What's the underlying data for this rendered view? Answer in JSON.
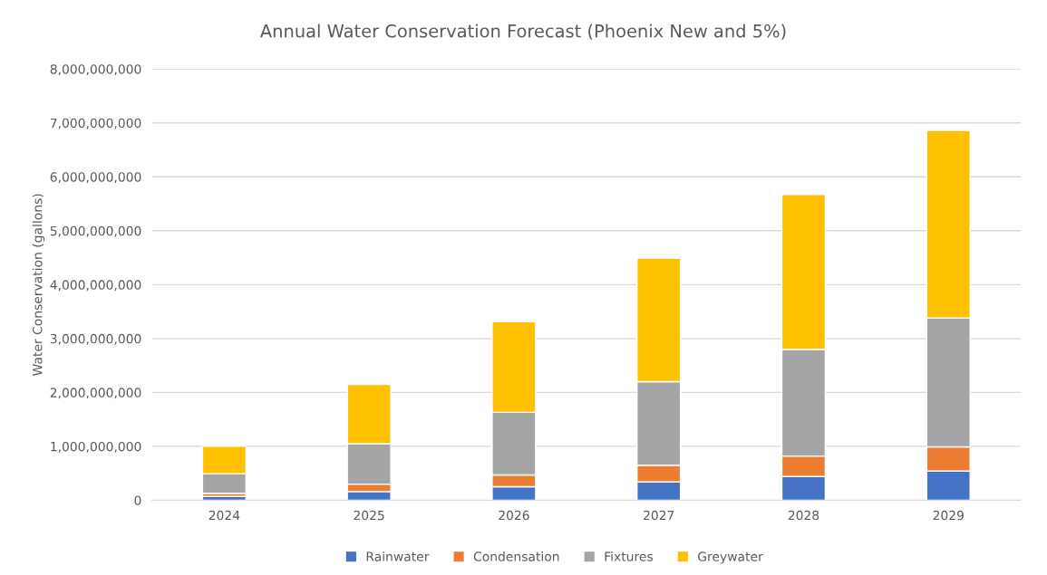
{
  "chart_data": {
    "type": "bar",
    "title": "Annual Water Conservation Forecast (Phoenix New and 5%)",
    "ylabel": "Water Conservation (gallons)",
    "categories": [
      "2024",
      "2025",
      "2026",
      "2027",
      "2028",
      "2029"
    ],
    "stacked": true,
    "series": [
      {
        "name": "Rainwater",
        "color": "#4472c4",
        "values": [
          70000000,
          160000000,
          250000000,
          340000000,
          440000000,
          540000000
        ]
      },
      {
        "name": "Condensation",
        "color": "#ed7d31",
        "values": [
          60000000,
          140000000,
          220000000,
          310000000,
          380000000,
          450000000
        ]
      },
      {
        "name": "Fixtures",
        "color": "#a5a5a5",
        "values": [
          360000000,
          750000000,
          1160000000,
          1550000000,
          1980000000,
          2390000000
        ]
      },
      {
        "name": "Greywater",
        "color": "#ffc000",
        "values": [
          510000000,
          1100000000,
          1680000000,
          2290000000,
          2870000000,
          3480000000
        ]
      }
    ],
    "ylim": [
      0,
      8000000000
    ],
    "yticks": [
      {
        "value": 0,
        "label": "0"
      },
      {
        "value": 1000000000,
        "label": "1,000,000,000"
      },
      {
        "value": 2000000000,
        "label": "2,000,000,000"
      },
      {
        "value": 3000000000,
        "label": "3,000,000,000"
      },
      {
        "value": 4000000000,
        "label": "4,000,000,000"
      },
      {
        "value": 5000000000,
        "label": "5,000,000,000"
      },
      {
        "value": 6000000000,
        "label": "6,000,000,000"
      },
      {
        "value": 7000000000,
        "label": "7,000,000,000"
      },
      {
        "value": 8000000000,
        "label": "8,000,000,000"
      }
    ],
    "grid": "y",
    "legend": "bottom"
  }
}
